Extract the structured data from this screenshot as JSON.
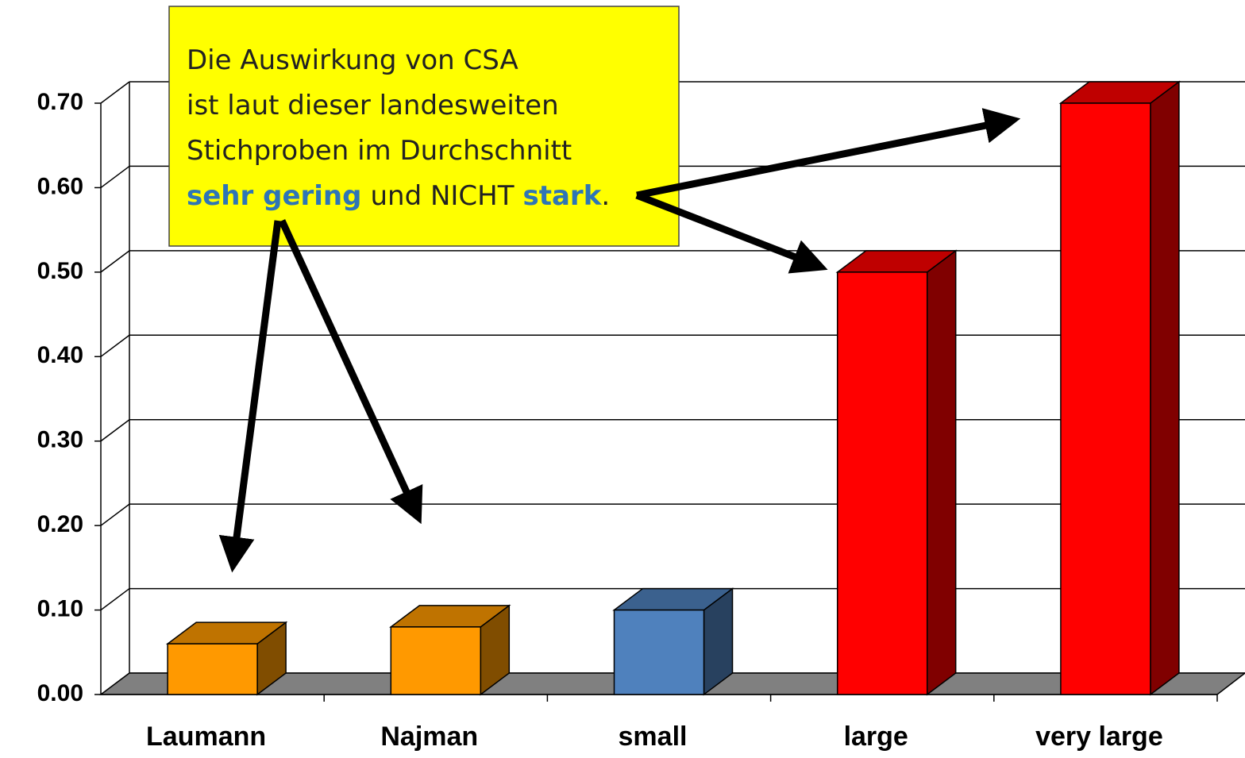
{
  "chart_data": {
    "type": "bar3d",
    "categories": [
      "Laumann",
      "Najman",
      "small",
      "large",
      "very large"
    ],
    "values": [
      0.06,
      0.08,
      0.1,
      0.5,
      0.7
    ],
    "colors": [
      "#ff9900",
      "#ff9900",
      "#4f81bd",
      "#ff0000",
      "#ff0000"
    ],
    "ylim": [
      0,
      0.7
    ],
    "yticks": [
      {
        "value": 0,
        "label": "0.00"
      },
      {
        "value": 0.1,
        "label": "0.10"
      },
      {
        "value": 0.2,
        "label": "0.20"
      },
      {
        "value": 0.3,
        "label": "0.30"
      },
      {
        "value": 0.4,
        "label": "0.40"
      },
      {
        "value": 0.5,
        "label": "0.50"
      },
      {
        "value": 0.6,
        "label": "0.60"
      },
      {
        "value": 0.7,
        "label": "0.70"
      }
    ],
    "grid": true,
    "annotation": {
      "lines": [
        "Die Auswirkung von CSA",
        "ist laut dieser landesweiten",
        "Stichproben im Durchschnitt"
      ],
      "last_line": [
        {
          "text": "sehr gering",
          "color": "#2e75b6"
        },
        {
          "text": "und NICHT",
          "color": "#222222"
        },
        {
          "text": "stark",
          "color": "#2e75b6"
        },
        {
          "text": ".",
          "color": "#222222"
        }
      ]
    }
  }
}
